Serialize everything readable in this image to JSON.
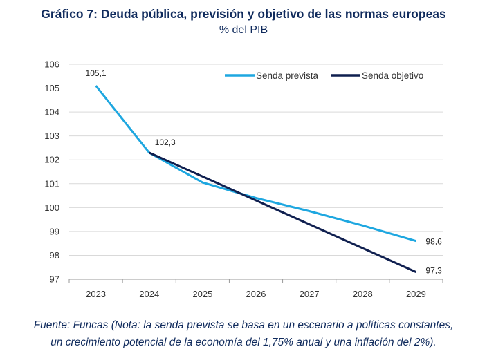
{
  "chart_data": {
    "type": "line",
    "title": "Gráfico 7: Deuda pública, previsión y objetivo de las normas europeas",
    "subtitle": "% del PIB",
    "x": [
      "2023",
      "2024",
      "2025",
      "2026",
      "2027",
      "2028",
      "2029"
    ],
    "ylim": [
      97,
      106
    ],
    "yticks": [
      97,
      98,
      99,
      100,
      101,
      102,
      103,
      104,
      105,
      106
    ],
    "ytick_labels": [
      "97",
      "98",
      "99",
      "100",
      "101",
      "102",
      "103",
      "104",
      "105",
      "106"
    ],
    "grid": true,
    "legend_position": "top-right",
    "series": [
      {
        "name": "Senda prevista",
        "color": "#1ea7e0",
        "values": [
          105.1,
          102.3,
          101.05,
          100.4,
          99.85,
          99.25,
          98.6
        ]
      },
      {
        "name": "Senda objetivo",
        "color": "#0f1f4f",
        "values": [
          null,
          102.3,
          101.3,
          100.3,
          99.3,
          98.3,
          97.3
        ]
      }
    ],
    "data_labels": [
      {
        "series": 0,
        "index": 0,
        "text": "105,1"
      },
      {
        "series": 0,
        "index": 1,
        "text": "102,3"
      },
      {
        "series": 0,
        "index": 6,
        "text": "98,6"
      },
      {
        "series": 1,
        "index": 6,
        "text": "97,3"
      }
    ]
  },
  "footer": {
    "line1": "Fuente: Funcas (Nota: la senda prevista se basa en un escenario a políticas constantes,",
    "line2": "un crecimiento potencial de la economía del 1,75% anual y una inflación del 2%)."
  }
}
